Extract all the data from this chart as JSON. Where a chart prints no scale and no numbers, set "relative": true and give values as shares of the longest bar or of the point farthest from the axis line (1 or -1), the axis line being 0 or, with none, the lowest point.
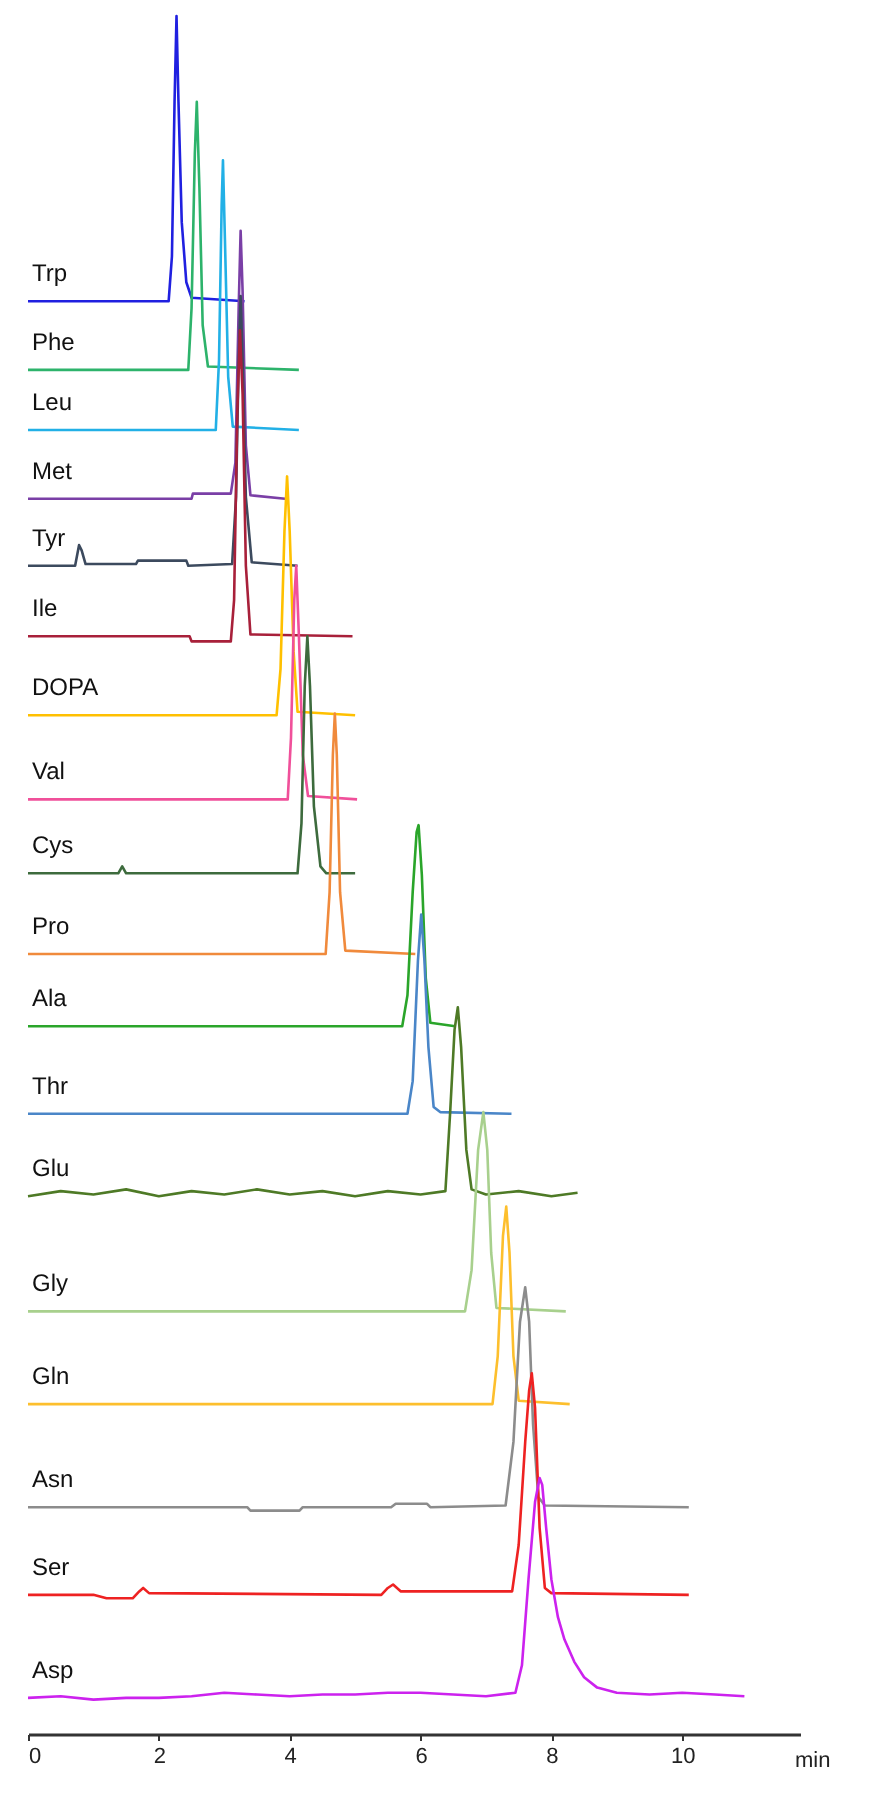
{
  "chart_data": {
    "type": "line",
    "relative": true,
    "xlabel": "min",
    "xlim": [
      0,
      11.8
    ],
    "xticks": [
      0,
      2,
      4,
      6,
      8,
      10
    ],
    "series": [
      {
        "name": "Trp",
        "color": "#2020e0",
        "x": [
          0,
          2.15,
          2.2,
          2.24,
          2.27,
          2.3,
          2.35,
          2.42,
          2.5,
          3.31
        ],
        "values": [
          0.834,
          0.834,
          0.86,
          0.95,
          1.0,
          0.95,
          0.88,
          0.845,
          0.836,
          0.834
        ]
      },
      {
        "name": "Phe",
        "color": "#2db36b",
        "x": [
          0,
          2.45,
          2.5,
          2.55,
          2.58,
          2.62,
          2.67,
          2.75,
          4.14
        ],
        "values": [
          0.794,
          0.794,
          0.83,
          0.92,
          0.95,
          0.9,
          0.82,
          0.796,
          0.794
        ]
      },
      {
        "name": "Leu",
        "color": "#22b0e6",
        "x": [
          0,
          2.87,
          2.92,
          2.96,
          2.98,
          3.01,
          3.06,
          3.13,
          4.14
        ],
        "values": [
          0.759,
          0.759,
          0.8,
          0.89,
          0.916,
          0.87,
          0.79,
          0.761,
          0.759
        ]
      },
      {
        "name": "Met",
        "color": "#7a3fa6",
        "x": [
          0,
          2.5,
          2.52,
          3.1,
          3.17,
          3.22,
          3.25,
          3.28,
          3.33,
          3.4,
          3.93
        ],
        "values": [
          0.719,
          0.719,
          0.722,
          0.722,
          0.74,
          0.83,
          0.875,
          0.84,
          0.75,
          0.721,
          0.719
        ]
      },
      {
        "name": "Tyr",
        "color": "#3c4a5e",
        "x": [
          0,
          0.72,
          0.78,
          0.82,
          0.88,
          1.65,
          1.68,
          2.42,
          2.45,
          3.12,
          3.18,
          3.22,
          3.25,
          3.28,
          3.33,
          3.42,
          4.12
        ],
        "values": [
          0.68,
          0.68,
          0.692,
          0.689,
          0.681,
          0.681,
          0.683,
          0.683,
          0.68,
          0.681,
          0.72,
          0.8,
          0.837,
          0.8,
          0.72,
          0.682,
          0.68
        ]
      },
      {
        "name": "Ile",
        "color": "#a8203a",
        "x": [
          0,
          2.47,
          2.5,
          3.1,
          3.15,
          3.2,
          3.24,
          3.28,
          3.33,
          3.4,
          4.96
        ],
        "values": [
          0.639,
          0.639,
          0.636,
          0.636,
          0.66,
          0.77,
          0.817,
          0.78,
          0.68,
          0.64,
          0.639
        ]
      },
      {
        "name": "DOPA",
        "color": "#ffc000",
        "x": [
          0,
          3.8,
          3.86,
          3.92,
          3.96,
          4.0,
          4.06,
          4.12,
          5.0
        ],
        "values": [
          0.593,
          0.593,
          0.62,
          0.7,
          0.732,
          0.7,
          0.63,
          0.595,
          0.593
        ]
      },
      {
        "name": "Val",
        "color": "#f0509a",
        "x": [
          0,
          3.97,
          4.02,
          4.07,
          4.1,
          4.14,
          4.2,
          4.28,
          5.03
        ],
        "values": [
          0.544,
          0.544,
          0.58,
          0.66,
          0.68,
          0.64,
          0.57,
          0.546,
          0.544
        ]
      },
      {
        "name": "Cys",
        "color": "#3d6b3d",
        "x": [
          0,
          1.38,
          1.44,
          1.5,
          4.12,
          4.18,
          4.23,
          4.27,
          4.31,
          4.37,
          4.47,
          4.56,
          5.0
        ],
        "values": [
          0.501,
          0.501,
          0.505,
          0.501,
          0.501,
          0.53,
          0.61,
          0.639,
          0.61,
          0.54,
          0.505,
          0.501,
          0.501
        ]
      },
      {
        "name": "Pro",
        "color": "#f08a3c",
        "x": [
          0,
          4.55,
          4.61,
          4.66,
          4.69,
          4.72,
          4.77,
          4.85,
          5.92
        ],
        "values": [
          0.454,
          0.454,
          0.49,
          0.57,
          0.594,
          0.57,
          0.49,
          0.456,
          0.454
        ]
      },
      {
        "name": "Ala",
        "color": "#2aa52a",
        "x": [
          0,
          5.72,
          5.8,
          5.88,
          5.94,
          5.97,
          6.02,
          6.08,
          6.15,
          6.53
        ],
        "values": [
          0.412,
          0.412,
          0.43,
          0.49,
          0.525,
          0.529,
          0.5,
          0.44,
          0.414,
          0.412
        ]
      },
      {
        "name": "Thr",
        "color": "#4a86c8",
        "x": [
          0,
          5.8,
          5.88,
          5.96,
          6.01,
          6.06,
          6.12,
          6.2,
          6.3,
          7.39
        ],
        "values": [
          0.361,
          0.361,
          0.38,
          0.45,
          0.477,
          0.45,
          0.4,
          0.365,
          0.362,
          0.361
        ]
      },
      {
        "name": "Glu",
        "color": "#4e7a26",
        "x": [
          0,
          0.5,
          1.0,
          1.5,
          2.0,
          2.5,
          3.0,
          3.5,
          4.0,
          4.5,
          5.0,
          5.5,
          6.0,
          6.38,
          6.45,
          6.52,
          6.57,
          6.62,
          6.7,
          6.78,
          7.0,
          7.5,
          8.0,
          8.4
        ],
        "values": [
          0.313,
          0.316,
          0.314,
          0.317,
          0.313,
          0.316,
          0.314,
          0.317,
          0.314,
          0.316,
          0.313,
          0.316,
          0.314,
          0.316,
          0.36,
          0.41,
          0.423,
          0.4,
          0.34,
          0.317,
          0.314,
          0.316,
          0.313,
          0.315
        ]
      },
      {
        "name": "Gly",
        "color": "#a8d08d",
        "x": [
          0,
          6.68,
          6.78,
          6.88,
          6.96,
          7.02,
          7.08,
          7.16,
          8.22
        ],
        "values": [
          0.246,
          0.246,
          0.27,
          0.34,
          0.362,
          0.34,
          0.28,
          0.248,
          0.246
        ]
      },
      {
        "name": "Gln",
        "color": "#fdbf2d",
        "x": [
          0,
          7.1,
          7.18,
          7.26,
          7.31,
          7.36,
          7.42,
          7.5,
          8.28
        ],
        "values": [
          0.192,
          0.192,
          0.22,
          0.29,
          0.307,
          0.28,
          0.22,
          0.194,
          0.192
        ]
      },
      {
        "name": "Asn",
        "color": "#8c8c8c",
        "x": [
          0,
          3.35,
          3.4,
          4.15,
          4.2,
          5.55,
          5.62,
          6.1,
          6.15,
          7.3,
          7.42,
          7.52,
          7.6,
          7.66,
          7.72,
          7.8,
          7.9,
          10.1
        ],
        "values": [
          0.132,
          0.132,
          0.13,
          0.13,
          0.132,
          0.132,
          0.134,
          0.134,
          0.132,
          0.133,
          0.17,
          0.24,
          0.26,
          0.24,
          0.18,
          0.138,
          0.133,
          0.132
        ]
      },
      {
        "name": "Ser",
        "color": "#ee2222",
        "x": [
          0,
          1.0,
          1.2,
          1.6,
          1.7,
          1.76,
          1.85,
          5.4,
          5.5,
          5.58,
          5.7,
          7.4,
          7.5,
          7.6,
          7.66,
          7.7,
          7.75,
          7.82,
          7.9,
          8.0,
          10.1
        ],
        "values": [
          0.081,
          0.081,
          0.079,
          0.079,
          0.083,
          0.085,
          0.082,
          0.081,
          0.085,
          0.087,
          0.083,
          0.083,
          0.11,
          0.17,
          0.2,
          0.21,
          0.19,
          0.12,
          0.085,
          0.082,
          0.081
        ]
      },
      {
        "name": "Asp",
        "color": "#cc22ee",
        "x": [
          0,
          0.5,
          1.0,
          1.5,
          2.0,
          2.5,
          3.0,
          3.5,
          4.0,
          4.5,
          5.0,
          5.5,
          6.0,
          6.5,
          7.0,
          7.45,
          7.55,
          7.65,
          7.75,
          7.82,
          7.86,
          7.92,
          8.0,
          8.1,
          8.2,
          8.35,
          8.5,
          8.7,
          9.0,
          9.5,
          10.0,
          10.5,
          10.95
        ],
        "values": [
          0.021,
          0.022,
          0.02,
          0.021,
          0.021,
          0.022,
          0.024,
          0.023,
          0.022,
          0.023,
          0.023,
          0.024,
          0.024,
          0.023,
          0.022,
          0.024,
          0.04,
          0.09,
          0.135,
          0.149,
          0.145,
          0.12,
          0.09,
          0.068,
          0.055,
          0.042,
          0.033,
          0.027,
          0.024,
          0.023,
          0.024,
          0.023,
          0.022
        ]
      }
    ]
  }
}
